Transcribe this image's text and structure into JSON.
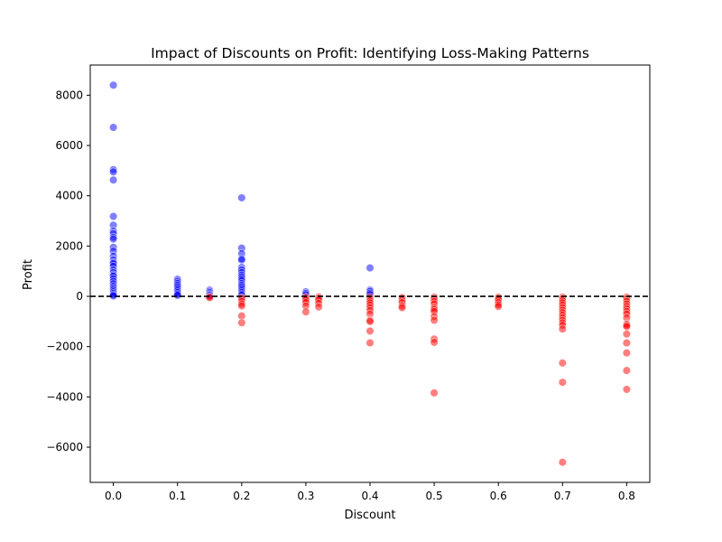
{
  "chart_data": {
    "type": "scatter",
    "title": "Impact of Discounts on Profit: Identifying Loss-Making Patterns",
    "xlabel": "Discount",
    "ylabel": "Profit",
    "xlim": [
      -0.036,
      0.836
    ],
    "ylim": [
      -7400,
      9200
    ],
    "xticks": [
      0.0,
      0.1,
      0.2,
      0.3,
      0.4,
      0.5,
      0.6,
      0.7,
      0.8
    ],
    "xtick_labels": [
      "0.0",
      "0.1",
      "0.2",
      "0.3",
      "0.4",
      "0.5",
      "0.6",
      "0.7",
      "0.8"
    ],
    "yticks": [
      -6000,
      -4000,
      -2000,
      0,
      2000,
      4000,
      6000,
      8000
    ],
    "ytick_labels": [
      "−6000",
      "−4000",
      "−2000",
      "0",
      "2000",
      "4000",
      "6000",
      "8000"
    ],
    "reference_line": {
      "y": 0,
      "style": "dashed",
      "color": "#000000"
    },
    "colors": {
      "profit": "#0000ff",
      "loss": "#ff0000"
    },
    "point_alpha": 0.5,
    "grid": false,
    "legend": "none",
    "series": [
      {
        "color_key": "profit",
        "points": [
          [
            0.0,
            8400
          ],
          [
            0.0,
            6720
          ],
          [
            0.0,
            5040
          ],
          [
            0.0,
            4950
          ],
          [
            0.0,
            4630
          ],
          [
            0.0,
            3180
          ],
          [
            0.0,
            2830
          ],
          [
            0.0,
            2600
          ],
          [
            0.0,
            2500
          ],
          [
            0.0,
            2350
          ],
          [
            0.0,
            2280
          ],
          [
            0.0,
            1950
          ],
          [
            0.0,
            1800
          ],
          [
            0.0,
            1600
          ],
          [
            0.0,
            1450
          ],
          [
            0.0,
            1350
          ],
          [
            0.0,
            1300
          ],
          [
            0.0,
            1200
          ],
          [
            0.0,
            1050
          ],
          [
            0.0,
            950
          ],
          [
            0.0,
            850
          ],
          [
            0.0,
            800
          ],
          [
            0.0,
            700
          ],
          [
            0.0,
            600
          ],
          [
            0.0,
            500
          ],
          [
            0.0,
            400
          ],
          [
            0.0,
            320
          ],
          [
            0.0,
            250
          ],
          [
            0.0,
            180
          ],
          [
            0.0,
            120
          ],
          [
            0.0,
            60
          ],
          [
            0.0,
            20
          ],
          [
            0.1,
            680
          ],
          [
            0.1,
            600
          ],
          [
            0.1,
            520
          ],
          [
            0.1,
            450
          ],
          [
            0.1,
            380
          ],
          [
            0.1,
            300
          ],
          [
            0.1,
            220
          ],
          [
            0.1,
            150
          ],
          [
            0.1,
            90
          ],
          [
            0.1,
            40
          ],
          [
            0.15,
            250
          ],
          [
            0.15,
            200
          ],
          [
            0.15,
            150
          ],
          [
            0.15,
            100
          ],
          [
            0.15,
            60
          ],
          [
            0.15,
            30
          ],
          [
            0.2,
            3920
          ],
          [
            0.2,
            1920
          ],
          [
            0.2,
            1700
          ],
          [
            0.2,
            1500
          ],
          [
            0.2,
            1450
          ],
          [
            0.2,
            1150
          ],
          [
            0.2,
            1050
          ],
          [
            0.2,
            950
          ],
          [
            0.2,
            850
          ],
          [
            0.2,
            780
          ],
          [
            0.2,
            700
          ],
          [
            0.2,
            620
          ],
          [
            0.2,
            520
          ],
          [
            0.2,
            450
          ],
          [
            0.2,
            380
          ],
          [
            0.2,
            300
          ],
          [
            0.2,
            220
          ],
          [
            0.2,
            150
          ],
          [
            0.2,
            90
          ],
          [
            0.2,
            40
          ],
          [
            0.3,
            180
          ],
          [
            0.3,
            120
          ],
          [
            0.3,
            60
          ],
          [
            0.4,
            1130
          ],
          [
            0.4,
            250
          ],
          [
            0.4,
            200
          ],
          [
            0.4,
            130
          ],
          [
            0.4,
            70
          ]
        ]
      },
      {
        "color_key": "loss",
        "points": [
          [
            0.15,
            -20
          ],
          [
            0.15,
            -50
          ],
          [
            0.2,
            -50
          ],
          [
            0.2,
            -100
          ],
          [
            0.2,
            -200
          ],
          [
            0.2,
            -300
          ],
          [
            0.2,
            -380
          ],
          [
            0.2,
            -780
          ],
          [
            0.2,
            -1050
          ],
          [
            0.3,
            -30
          ],
          [
            0.3,
            -80
          ],
          [
            0.3,
            -150
          ],
          [
            0.3,
            -250
          ],
          [
            0.3,
            -380
          ],
          [
            0.3,
            -620
          ],
          [
            0.32,
            -20
          ],
          [
            0.32,
            -80
          ],
          [
            0.32,
            -150
          ],
          [
            0.32,
            -280
          ],
          [
            0.32,
            -420
          ],
          [
            0.4,
            -30
          ],
          [
            0.4,
            -100
          ],
          [
            0.4,
            -180
          ],
          [
            0.4,
            -260
          ],
          [
            0.4,
            -350
          ],
          [
            0.4,
            -450
          ],
          [
            0.4,
            -560
          ],
          [
            0.4,
            -700
          ],
          [
            0.4,
            -950
          ],
          [
            0.4,
            -1000
          ],
          [
            0.4,
            -1380
          ],
          [
            0.4,
            -1850
          ],
          [
            0.45,
            -50
          ],
          [
            0.45,
            -150
          ],
          [
            0.45,
            -250
          ],
          [
            0.45,
            -380
          ],
          [
            0.45,
            -450
          ],
          [
            0.5,
            -30
          ],
          [
            0.5,
            -100
          ],
          [
            0.5,
            -200
          ],
          [
            0.5,
            -300
          ],
          [
            0.5,
            -450
          ],
          [
            0.5,
            -520
          ],
          [
            0.5,
            -600
          ],
          [
            0.5,
            -800
          ],
          [
            0.5,
            -950
          ],
          [
            0.5,
            -1700
          ],
          [
            0.5,
            -1830
          ],
          [
            0.5,
            -3840
          ],
          [
            0.6,
            -30
          ],
          [
            0.6,
            -80
          ],
          [
            0.6,
            -150
          ],
          [
            0.6,
            -250
          ],
          [
            0.6,
            -330
          ],
          [
            0.6,
            -400
          ],
          [
            0.7,
            -30
          ],
          [
            0.7,
            -100
          ],
          [
            0.7,
            -180
          ],
          [
            0.7,
            -260
          ],
          [
            0.7,
            -350
          ],
          [
            0.7,
            -450
          ],
          [
            0.7,
            -550
          ],
          [
            0.7,
            -650
          ],
          [
            0.7,
            -750
          ],
          [
            0.7,
            -850
          ],
          [
            0.7,
            -950
          ],
          [
            0.7,
            -1050
          ],
          [
            0.7,
            -1150
          ],
          [
            0.7,
            -1300
          ],
          [
            0.7,
            -2650
          ],
          [
            0.7,
            -3420
          ],
          [
            0.7,
            -6600
          ],
          [
            0.8,
            -30
          ],
          [
            0.8,
            -100
          ],
          [
            0.8,
            -200
          ],
          [
            0.8,
            -300
          ],
          [
            0.8,
            -400
          ],
          [
            0.8,
            -500
          ],
          [
            0.8,
            -600
          ],
          [
            0.8,
            -700
          ],
          [
            0.8,
            -850
          ],
          [
            0.8,
            -1100
          ],
          [
            0.8,
            -1150
          ],
          [
            0.8,
            -1200
          ],
          [
            0.8,
            -1500
          ],
          [
            0.8,
            -1850
          ],
          [
            0.8,
            -2250
          ],
          [
            0.8,
            -2950
          ],
          [
            0.8,
            -3700
          ]
        ]
      }
    ]
  }
}
